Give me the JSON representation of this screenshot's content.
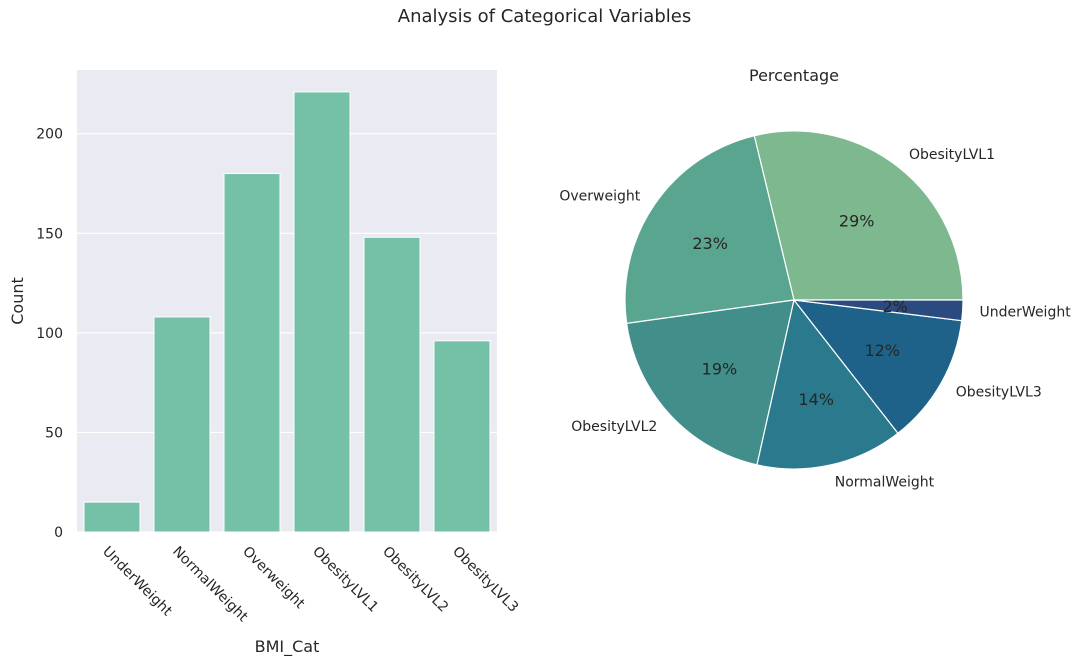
{
  "figure": {
    "title": "Analysis of Categorical Variables"
  },
  "chart_data": [
    {
      "type": "bar",
      "title": "",
      "xlabel": "BMI_Cat",
      "ylabel": "Count",
      "categories": [
        "UnderWeight",
        "NormalWeight",
        "Overweight",
        "ObesityLVL1",
        "ObesityLVL2",
        "ObesityLVL3"
      ],
      "values": [
        15,
        108,
        180,
        221,
        148,
        96
      ],
      "ylim": [
        0,
        232
      ],
      "yticks": [
        0,
        50,
        100,
        150,
        200
      ],
      "grid": true,
      "bar_color": "#74c1a7",
      "background": "#eaeaf2"
    },
    {
      "type": "pie",
      "title": "Percentage",
      "labels": [
        "ObesityLVL1",
        "Overweight",
        "ObesityLVL2",
        "NormalWeight",
        "ObesityLVL3",
        "UnderWeight"
      ],
      "values": [
        221,
        180,
        148,
        108,
        96,
        15
      ],
      "pct_labels": [
        "29%",
        "23%",
        "19%",
        "14%",
        "12%",
        "2%"
      ],
      "colors": [
        "#7db88f",
        "#5aa590",
        "#418e8b",
        "#2a798c",
        "#1f6289",
        "#2a4a80"
      ]
    }
  ]
}
